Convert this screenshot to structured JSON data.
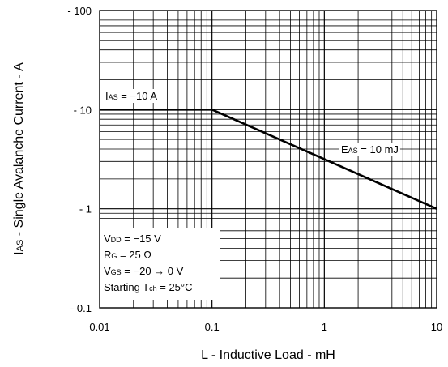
{
  "chart_data": {
    "type": "line",
    "title": "",
    "x_scale": "log",
    "y_scale": "log",
    "xlim": [
      0.01,
      10
    ],
    "ylim": [
      -0.1,
      -100
    ],
    "grid": true,
    "xlabel": "L - Inductive Load - mH",
    "ylabel": {
      "prefix": "I",
      "sub": "AS",
      "rest": " - Single Avalanche Current - A"
    },
    "x_ticks": [
      {
        "value": 0.01,
        "label": "0.01"
      },
      {
        "value": 0.1,
        "label": "0.1"
      },
      {
        "value": 1,
        "label": "1"
      },
      {
        "value": 10,
        "label": "10"
      }
    ],
    "y_ticks": [
      {
        "value": -0.1,
        "label": "- 0.1"
      },
      {
        "value": -1,
        "label": "- 1"
      },
      {
        "value": -10,
        "label": "- 10"
      },
      {
        "value": -100,
        "label": "- 100"
      }
    ],
    "series": [
      {
        "x": [
          0.01,
          0.1,
          10
        ],
        "y": [
          -10,
          -10,
          -1
        ]
      }
    ],
    "annotations": {
      "ias": {
        "main": "I",
        "sub": "AS",
        "rest": " = −10 A"
      },
      "eas": {
        "main": "E",
        "sub": "AS",
        "rest": " = 10 mJ"
      },
      "conditions": [
        {
          "main": "V",
          "sub": "DD",
          "rest": " = −15 V"
        },
        {
          "main": "R",
          "sub": "G",
          "rest": " = 25 Ω"
        },
        {
          "main": "V",
          "sub": "GS",
          "rest": " = −20 → 0 V"
        },
        {
          "main": "Starting T",
          "sub": "ch",
          "rest": " = 25°C"
        }
      ]
    }
  }
}
